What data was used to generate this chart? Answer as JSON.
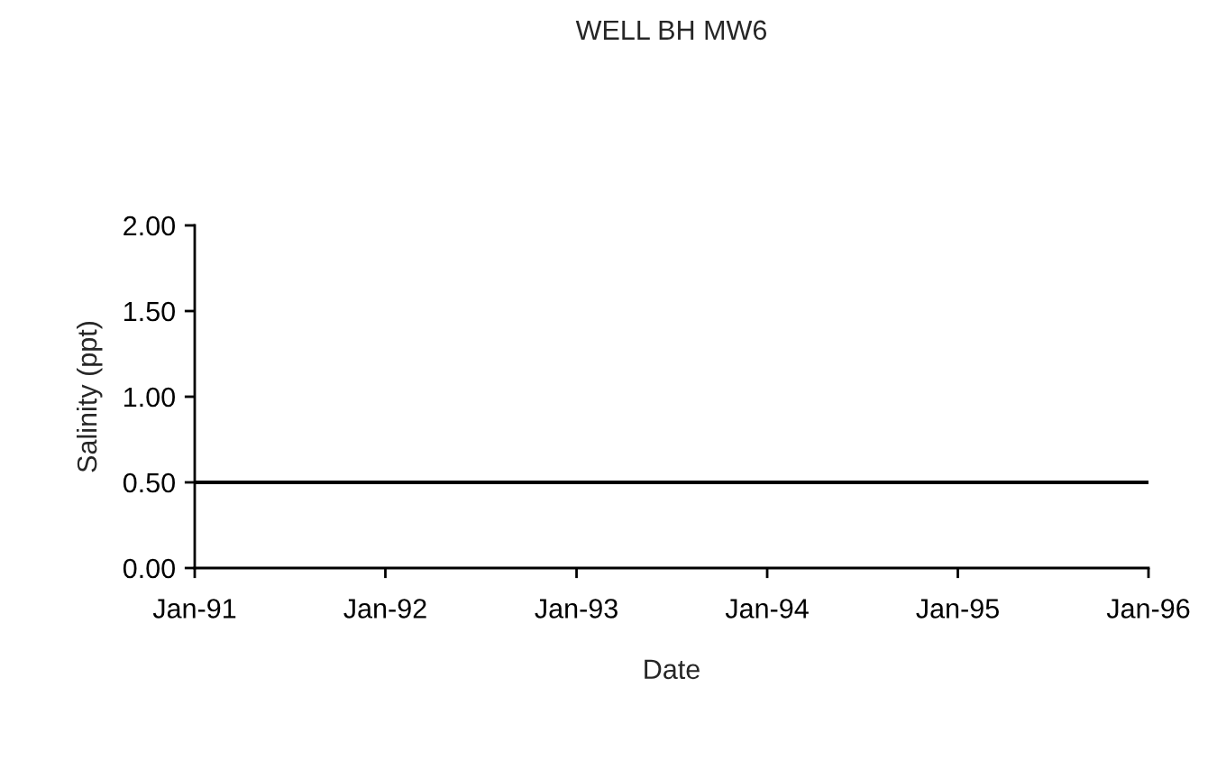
{
  "chart_data": {
    "type": "line",
    "title": "WELL BH MW6",
    "xlabel": "Date",
    "ylabel": "Salinity (ppt)",
    "x": [
      "1991-01",
      "1996-01"
    ],
    "series": [
      {
        "color": "#000000",
        "values": [
          0.5,
          0.5
        ]
      }
    ],
    "xlim": [
      "1991-01",
      "1996-01"
    ],
    "xticks": [
      {
        "value": "1991-01",
        "label": "Jan-91"
      },
      {
        "value": "1992-01",
        "label": "Jan-92"
      },
      {
        "value": "1993-01",
        "label": "Jan-93"
      },
      {
        "value": "1994-01",
        "label": "Jan-94"
      },
      {
        "value": "1995-01",
        "label": "Jan-95"
      },
      {
        "value": "1996-01",
        "label": "Jan-96"
      }
    ],
    "ylim": [
      0,
      2
    ],
    "yticks": [
      {
        "value": 0,
        "label": "0.00"
      },
      {
        "value": 0.5,
        "label": "0.50"
      },
      {
        "value": 1,
        "label": "1.00"
      },
      {
        "value": 1.5,
        "label": "1.50"
      },
      {
        "value": 2,
        "label": "2.00"
      }
    ],
    "grid": false,
    "legend": false,
    "marker": "none",
    "line_style": "solid"
  }
}
